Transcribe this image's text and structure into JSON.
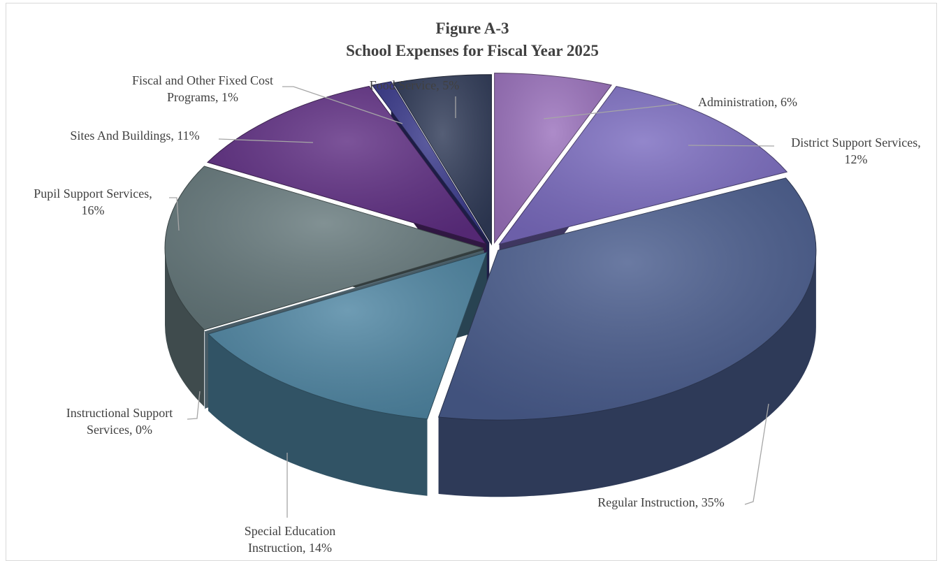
{
  "chart_data": {
    "type": "pie",
    "title": "Figure A-3",
    "subtitle": "School Expenses for Fiscal Year 2025",
    "series": [
      {
        "category": "Administration",
        "value": 6,
        "label_lines": [
          "Administration,  6%"
        ],
        "color": "#9b72bd"
      },
      {
        "category": "District Support Services",
        "value": 12,
        "label_lines": [
          "District  Support Services,",
          "12%"
        ],
        "color": "#7b6cc0"
      },
      {
        "category": "Regular Instruction",
        "value": 35,
        "label_lines": [
          "Regular  Instruction,  35%"
        ],
        "color": "#4a5d8e"
      },
      {
        "category": "Special Education Instruction",
        "value": 14,
        "label_lines": [
          "Special Education",
          "Instruction,  14%"
        ],
        "color": "#4f86a3"
      },
      {
        "category": "Instructional Support Services",
        "value": 0,
        "label_lines": [
          "Instructional  Support",
          "Services,  0%"
        ],
        "color": "#8fb5c9"
      },
      {
        "category": "Pupil Support Services",
        "value": 16,
        "label_lines": [
          "Pupil Support Services,",
          "16%"
        ],
        "color": "#66797c"
      },
      {
        "category": "Sites And Buildings",
        "value": 11,
        "label_lines": [
          "Sites And Buildings,  11%"
        ],
        "color": "#5f2e83"
      },
      {
        "category": "Fiscal and Other Fixed Cost Programs",
        "value": 1,
        "label_lines": [
          "Fiscal and Other Fixed Cost",
          "Programs,  1%"
        ],
        "color": "#3a3a8c"
      },
      {
        "category": "Food Service",
        "value": 5,
        "label_lines": [
          "Food Service,  5%"
        ],
        "color": "#303b58"
      }
    ],
    "legend": "none",
    "data_labels": "category, percentage"
  }
}
